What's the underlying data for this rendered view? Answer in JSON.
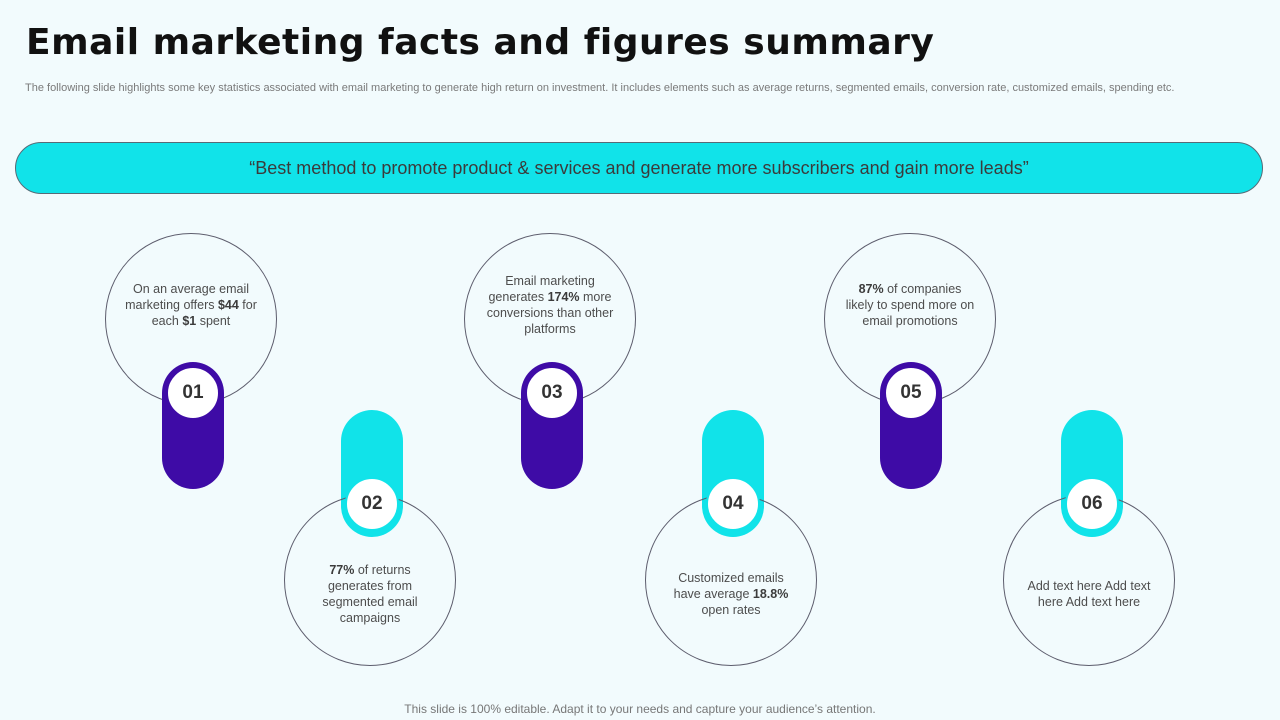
{
  "title": "Email marketing facts and figures summary",
  "subtitle": "The following slide highlights some key statistics associated with email marketing to generate high return on investment. It includes elements such as average returns, segmented emails, conversion rate, customized emails, spending etc.",
  "banner": "“Best method to promote product & services and generate more subscribers and gain more leads”",
  "footer": "This slide is 100% editable. Adapt it to your needs and capture your audience’s attention.",
  "colors": {
    "accent_cyan": "#11e3e9",
    "accent_purple": "#3e0ba6",
    "background": "#f2fbfd"
  },
  "items": [
    {
      "number": "01",
      "text": [
        {
          "t": "On an average  email marketing offers ",
          "b": false
        },
        {
          "t": "$44",
          "b": true
        },
        {
          "t": " for each ",
          "b": false
        },
        {
          "t": "$1",
          "b": true
        },
        {
          "t": "  spent",
          "b": false
        }
      ]
    },
    {
      "number": "02",
      "text": [
        {
          "t": "77%",
          "b": true
        },
        {
          "t": " of returns generates from segmented email campaigns",
          "b": false
        }
      ]
    },
    {
      "number": "03",
      "text": [
        {
          "t": "Email marketing generates ",
          "b": false
        },
        {
          "t": "174%",
          "b": true
        },
        {
          "t": " more conversions than other platforms",
          "b": false
        }
      ]
    },
    {
      "number": "04",
      "text": [
        {
          "t": "Customized emails have average ",
          "b": false
        },
        {
          "t": "18.8%",
          "b": true
        },
        {
          "t": "  open rates",
          "b": false
        }
      ]
    },
    {
      "number": "05",
      "text": [
        {
          "t": "87%",
          "b": true
        },
        {
          "t": " of companies likely to spend more on email promotions",
          "b": false
        }
      ]
    },
    {
      "number": "06",
      "text": [
        {
          "t": "Add text here Add text here Add text here",
          "b": false
        }
      ]
    }
  ]
}
